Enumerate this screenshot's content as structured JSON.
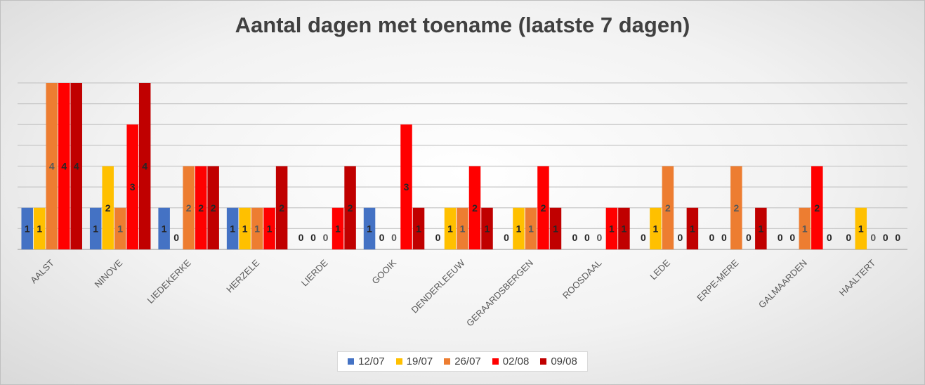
{
  "chart_data": {
    "type": "bar",
    "title": "Aantal dagen met toename (laatste 7 dagen)",
    "xlabel": "",
    "ylabel": "",
    "ylim": [
      0,
      4
    ],
    "grid": true,
    "legend_position": "bottom",
    "categories": [
      "AALST",
      "NINOVE",
      "LIEDEKERKE",
      "HERZELE",
      "LIERDE",
      "GOOIK",
      "DENDERLEEUW",
      "GERAARDSBERGEN",
      "ROOSDAAL",
      "LEDE",
      "ERPE-MERE",
      "GALMAARDEN",
      "HAALTERT"
    ],
    "series": [
      {
        "name": "12/07",
        "color": "#4472c4",
        "label_color": "#262626",
        "values": [
          1,
          1,
          1,
          1,
          0,
          1,
          0,
          0,
          0,
          0,
          0,
          0,
          0
        ]
      },
      {
        "name": "19/07",
        "color": "#ffc000",
        "label_color": "#262626",
        "values": [
          1,
          2,
          0,
          1,
          0,
          0,
          1,
          1,
          0,
          1,
          0,
          0,
          1
        ]
      },
      {
        "name": "26/07",
        "color": "#ed7d31",
        "label_color": "#595959",
        "values": [
          4,
          1,
          2,
          1,
          0,
          0,
          1,
          1,
          0,
          2,
          2,
          1,
          0
        ]
      },
      {
        "name": "02/08",
        "color": "#ff0000",
        "label_color": "#262626",
        "values": [
          4,
          3,
          2,
          1,
          1,
          3,
          2,
          2,
          1,
          0,
          0,
          2,
          0
        ]
      },
      {
        "name": "09/08",
        "color": "#c00000",
        "label_color": "#262626",
        "values": [
          4,
          4,
          2,
          2,
          2,
          1,
          1,
          1,
          1,
          1,
          1,
          0,
          0
        ]
      }
    ]
  }
}
